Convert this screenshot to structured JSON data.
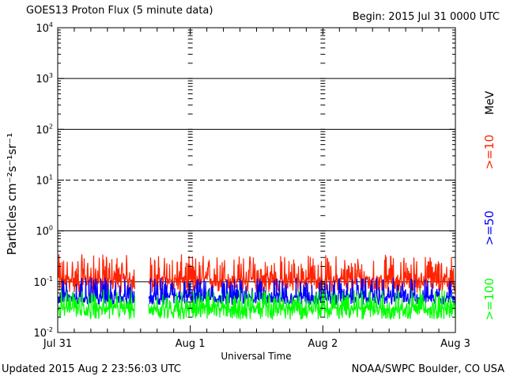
{
  "header": {
    "title": "GOES13 Proton Flux (5 minute data)",
    "begin": "Begin: 2015 Jul 31 0000 UTC"
  },
  "footer": {
    "updated": "Updated 2015 Aug  2 23:56:03 UTC",
    "source": "NOAA/SWPC Boulder, CO USA"
  },
  "chart_data": {
    "type": "line",
    "title": "GOES13 Proton Flux (5 minute data)",
    "xlabel": "Universal Time",
    "ylabel": "Particles cm⁻²s⁻¹sr⁻¹",
    "y_scale": "log",
    "ylim": [
      0.01,
      10000
    ],
    "y_ticks": [
      "10⁻²",
      "10⁻¹",
      "10⁰",
      "10¹",
      "10²",
      "10³",
      "10⁴"
    ],
    "x_ticks": [
      "Jul 31",
      "Aug 1",
      "Aug 2",
      "Aug 3"
    ],
    "xlim_days": [
      0,
      3
    ],
    "threshold_lines": [
      {
        "value": 1000,
        "style": "solid"
      },
      {
        "value": 100,
        "style": "solid"
      },
      {
        "value": 10,
        "style": "dashed"
      },
      {
        "value": 1,
        "style": "solid"
      },
      {
        "value": 0.1,
        "style": "solid"
      }
    ],
    "data_gap_days": [
      0.58,
      0.68
    ],
    "legend_units": "MeV",
    "series": [
      {
        "name": ">=10",
        "color": "#ff2200",
        "typical": 0.11,
        "range": [
          0.06,
          0.35
        ]
      },
      {
        "name": ">=50",
        "color": "#0000ff",
        "typical": 0.05,
        "range": [
          0.035,
          0.12
        ]
      },
      {
        "name": ">=100",
        "color": "#00ff00",
        "typical": 0.03,
        "range": [
          0.018,
          0.07
        ]
      }
    ],
    "grid": false,
    "legend_position": "right, vertical"
  }
}
